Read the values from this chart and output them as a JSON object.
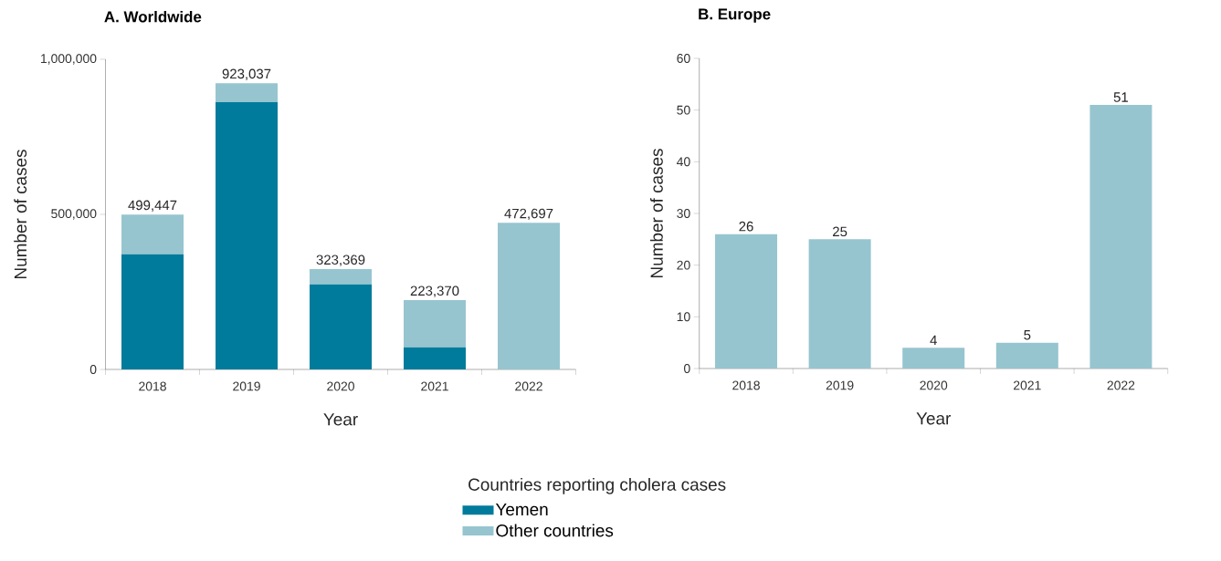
{
  "chart_data": [
    {
      "type": "bar",
      "title": "A. Worldwide",
      "xlabel": "Year",
      "ylabel": "Number of cases",
      "categories": [
        "2018",
        "2019",
        "2020",
        "2021",
        "2022"
      ],
      "stacked": true,
      "series": [
        {
          "name": "Yemen",
          "color": "#007b9c",
          "values": [
            371000,
            862000,
            274000,
            71000,
            0
          ]
        },
        {
          "name": "Other countries",
          "color": "#96c5cf",
          "values": [
            128447,
            61037,
            49369,
            152370,
            472697
          ]
        }
      ],
      "ylim": [
        0,
        1000000
      ],
      "yticks": [
        0,
        {
          "value": 500000,
          "label": "500,000"
        },
        {
          "value": 1000000,
          "label": "1,000,000"
        }
      ],
      "totals": [
        "499,447",
        "923,037",
        "323,369",
        "223,370",
        "472,697"
      ],
      "legend": "bottom",
      "legend_title": "Countries reporting cholera cases"
    },
    {
      "type": "bar",
      "title": "B. Europe",
      "xlabel": "Year",
      "ylabel": "Number of cases",
      "categories": [
        "2018",
        "2019",
        "2020",
        "2021",
        "2022"
      ],
      "series": [
        {
          "color": "#96c5cf",
          "values": [
            26,
            25,
            4,
            5,
            51
          ],
          "value_labels": [
            "26",
            "25",
            "4",
            "5",
            "51"
          ]
        }
      ],
      "ylim": [
        0,
        60
      ],
      "yticks": [
        0,
        10,
        20,
        30,
        40,
        50,
        60
      ]
    }
  ]
}
